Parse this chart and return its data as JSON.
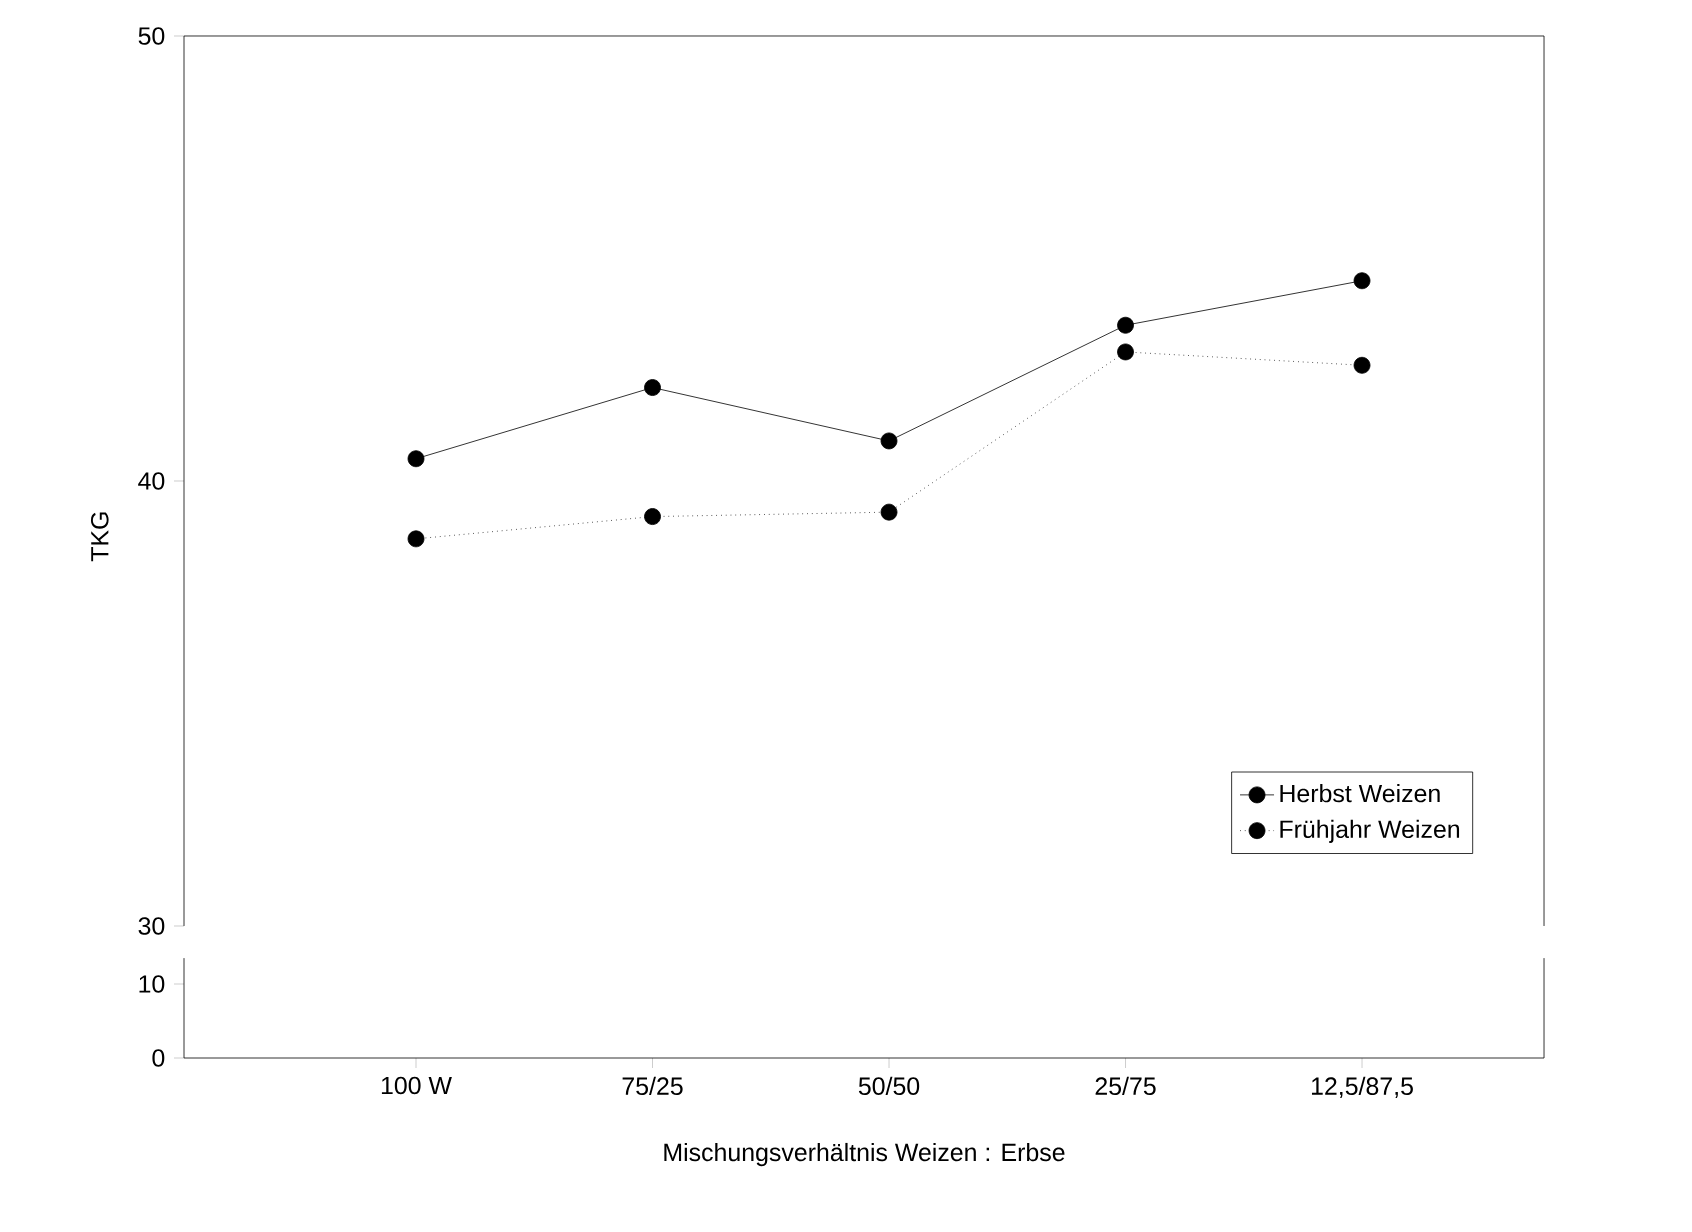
{
  "chart_data": [
    {
      "type": "line",
      "ylabel": "TKG",
      "ylim": [
        30,
        50
      ],
      "yticks": [
        30,
        40,
        50
      ],
      "tick_labels": "y",
      "marker": "circle",
      "legend": "bottom right",
      "series": [
        {
          "name": "Herbst Weizen",
          "color": "#000000",
          "line_style": "solid",
          "values": [
            40.5,
            42.1,
            40.9,
            43.5,
            44.5
          ]
        },
        {
          "name": "Frühjahr Weizen",
          "color": "#000000",
          "line_style": "dotted",
          "values": [
            38.7,
            39.2,
            39.3,
            42.9,
            42.6
          ]
        }
      ]
    },
    {
      "type": "line",
      "xlabel": "Mischungsverhältnis Weizen : Erbse",
      "categories": [
        "100 W",
        "75/25",
        "50/50",
        "25/75",
        "12,5/87,5"
      ],
      "ylim": [
        0,
        10
      ],
      "yticks": [
        0,
        10
      ]
    }
  ]
}
